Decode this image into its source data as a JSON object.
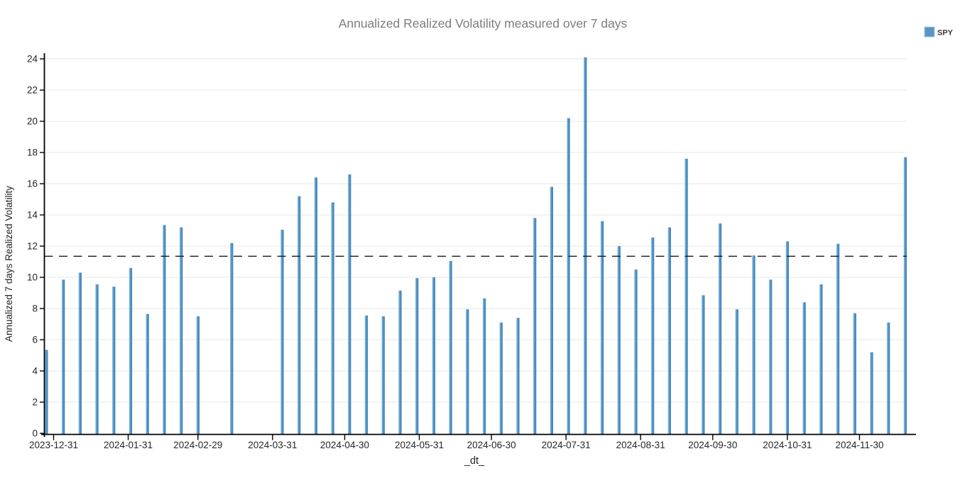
{
  "chart_data": {
    "type": "bar",
    "title": "Annualized Realized Volatility measured over 7 days",
    "xlabel": "_dt_",
    "ylabel": "Annualized 7 days Realized Volatility",
    "grid": "horizontal",
    "legend_position": "top-right",
    "ylim": [
      0,
      24
    ],
    "y_ticks": [
      0,
      2,
      4,
      6,
      8,
      10,
      12,
      14,
      16,
      18,
      20,
      22,
      24
    ],
    "x_ticks": [
      "2023-12-31",
      "2024-01-31",
      "2024-02-29",
      "2024-03-31",
      "2024-04-30",
      "2024-05-31",
      "2024-06-30",
      "2024-07-31",
      "2024-08-31",
      "2024-09-30",
      "2024-10-31",
      "2024-11-30"
    ],
    "x_range": [
      "2023-12-27",
      "2024-12-20"
    ],
    "mean_line": {
      "value": 11.35,
      "style": "dashed",
      "color": "#1a1a1a"
    },
    "series": [
      {
        "name": "SPY",
        "x": [
          "2023-12-28",
          "2024-01-04",
          "2024-01-11",
          "2024-01-18",
          "2024-01-25",
          "2024-02-01",
          "2024-02-08",
          "2024-02-15",
          "2024-02-22",
          "2024-02-29",
          "2024-03-14",
          "2024-04-04",
          "2024-04-11",
          "2024-04-18",
          "2024-04-25",
          "2024-05-02",
          "2024-05-09",
          "2024-05-16",
          "2024-05-23",
          "2024-05-30",
          "2024-06-06",
          "2024-06-13",
          "2024-06-20",
          "2024-06-27",
          "2024-07-04",
          "2024-07-11",
          "2024-07-18",
          "2024-07-25",
          "2024-08-01",
          "2024-08-08",
          "2024-08-15",
          "2024-08-22",
          "2024-08-29",
          "2024-09-05",
          "2024-09-12",
          "2024-09-19",
          "2024-09-26",
          "2024-10-03",
          "2024-10-10",
          "2024-10-17",
          "2024-10-24",
          "2024-10-31",
          "2024-11-07",
          "2024-11-14",
          "2024-11-21",
          "2024-11-28",
          "2024-12-05",
          "2024-12-12",
          "2024-12-19"
        ],
        "values": [
          5.35,
          9.85,
          10.3,
          9.55,
          9.4,
          10.6,
          7.65,
          13.35,
          13.2,
          7.5,
          12.2,
          13.05,
          15.2,
          16.4,
          14.8,
          16.6,
          7.55,
          7.5,
          9.15,
          9.95,
          10.0,
          11.05,
          7.95,
          8.65,
          7.1,
          7.4,
          13.8,
          15.8,
          20.2,
          24.1,
          13.6,
          12.0,
          10.5,
          12.55,
          13.2,
          17.6,
          8.85,
          13.45,
          7.95,
          11.4,
          9.85,
          12.3,
          8.4,
          9.55,
          12.15,
          7.7,
          5.2,
          7.1,
          17.7
        ]
      }
    ],
    "colors": {
      "bar_light": "#a9cde6",
      "bar_mid": "#5695c6",
      "bar_dark": "#3d85b9",
      "grid": "#e7e7e7",
      "spine": "#000000",
      "mean_line": "#1a1a1a",
      "title": "#7d7d7d",
      "tick_text": "#262626"
    }
  }
}
